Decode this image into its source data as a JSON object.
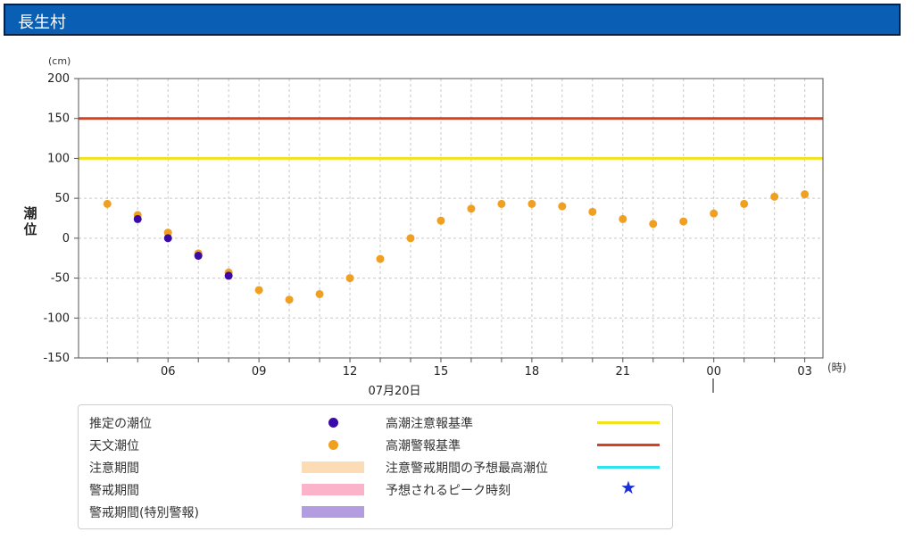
{
  "header": {
    "title": "長生村"
  },
  "chart_data": {
    "type": "scatter",
    "y_unit": "(cm)",
    "x_unit": "(時)",
    "ylabel": "潮位",
    "date_label": "07月20日",
    "ylim": [
      -150,
      200
    ],
    "y_ticks": [
      200,
      150,
      100,
      50,
      0,
      -50,
      -100,
      -150
    ],
    "x_tick_labels": [
      "06",
      "09",
      "12",
      "15",
      "18",
      "21",
      "00",
      "03"
    ],
    "x_tick_hours": [
      6,
      9,
      12,
      15,
      18,
      21,
      24,
      27
    ],
    "xlim_hours": [
      3.05,
      27.6
    ],
    "grid": true,
    "thresholds": [
      {
        "name": "高潮注意報基準",
        "value": 100,
        "color": "#f2e21e"
      },
      {
        "name": "高潮警報基準",
        "value": 150,
        "color": "#d9411e"
      }
    ],
    "series": [
      {
        "name": "天文潮位",
        "color": "#f0a020",
        "x": [
          4,
          5,
          6,
          7,
          8,
          9,
          10,
          11,
          12,
          13,
          14,
          15,
          16,
          17,
          18,
          19,
          20,
          21,
          22,
          23,
          24,
          25,
          26,
          27
        ],
        "y": [
          43,
          29,
          7,
          -19,
          -43,
          -65,
          -77,
          -70,
          -50,
          -26,
          0,
          22,
          37,
          43,
          43,
          40,
          33,
          24,
          18,
          21,
          31,
          43,
          52,
          55
        ]
      },
      {
        "name": "推定の潮位",
        "color": "#3a0aa8",
        "x": [
          5,
          6,
          7,
          8
        ],
        "y": [
          24,
          0,
          -22,
          -47
        ]
      }
    ]
  },
  "legend": {
    "left": [
      {
        "label": "推定の潮位",
        "kind": "dot",
        "color": "#3a0aa8"
      },
      {
        "label": "天文潮位",
        "kind": "dot",
        "color": "#f0a020"
      },
      {
        "label": "注意期間",
        "kind": "bar",
        "color": "#fbdcb5"
      },
      {
        "label": "警戒期間",
        "kind": "bar",
        "color": "#fbb3c9"
      },
      {
        "label": "警戒期間(特別警報)",
        "kind": "bar",
        "color": "#b49ce0"
      }
    ],
    "right": [
      {
        "label": "高潮注意報基準",
        "kind": "line",
        "color": "#f2e21e"
      },
      {
        "label": "高潮警報基準",
        "kind": "line",
        "color": "#d9411e"
      },
      {
        "label": "注意警戒期間の予想最高潮位",
        "kind": "line",
        "color": "#2fe3f0"
      },
      {
        "label": "予想されるピーク時刻",
        "kind": "star",
        "color": "#1a2fd6"
      }
    ]
  }
}
